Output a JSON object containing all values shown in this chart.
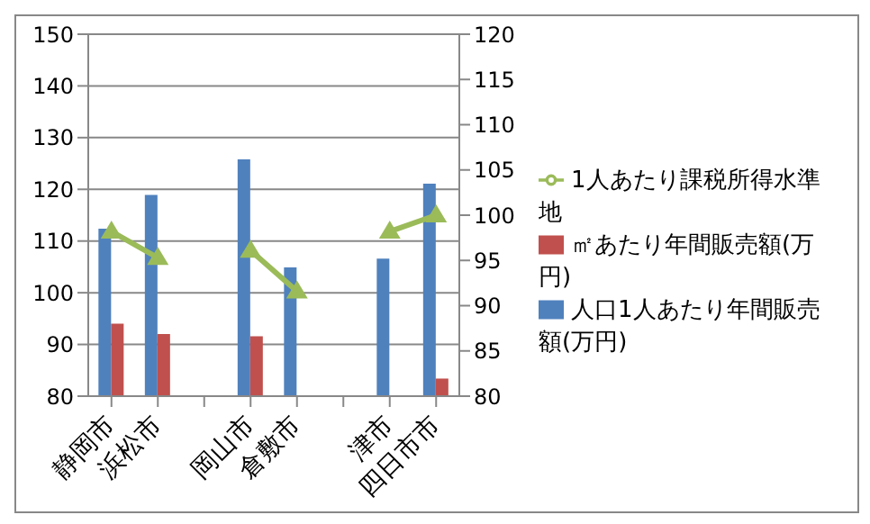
{
  "chart_data": {
    "type": "bar",
    "categories": [
      "静岡市",
      "浜松市",
      null,
      "岡山市",
      "倉敷市",
      null,
      "津市",
      "四日市市"
    ],
    "series": [
      {
        "name": "人口1人あたり年間販売額(万円)",
        "color": "#4f81bd",
        "values": [
          112.4,
          118.9,
          null,
          125.8,
          104.9,
          null,
          106.6,
          121.1
        ]
      },
      {
        "name": "㎡あたり年間販売額(万円)",
        "color": "#c0504d",
        "values": [
          94,
          92,
          null,
          91.6,
          80,
          null,
          80,
          83.4
        ]
      },
      {
        "name": "1人あたり課税所得水準地",
        "type": "line",
        "axis": "y2",
        "color": "#9bbb59",
        "values": [
          98.2,
          95.3,
          null,
          96.1,
          91.6,
          null,
          98.2,
          100
        ]
      }
    ],
    "ylim": [
      80,
      150
    ],
    "yticks": [
      80,
      90,
      100,
      110,
      120,
      130,
      140,
      150
    ],
    "y2lim": [
      80,
      120
    ],
    "y2ticks": [
      80,
      85,
      90,
      95,
      100,
      105,
      110,
      115,
      120
    ],
    "grid": "y",
    "legend": "right",
    "marker": "triangle",
    "line_style": "solid"
  }
}
